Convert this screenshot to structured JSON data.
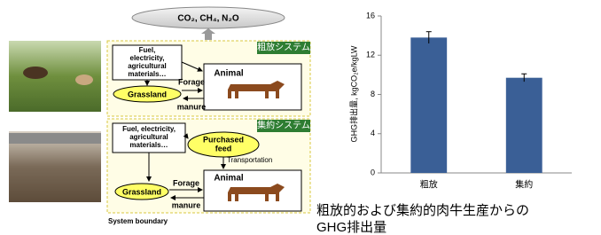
{
  "chart_data": {
    "type": "bar",
    "y_label": "GHG排出量, kgCO₂e/kgLW",
    "categories": [
      "粗放",
      "集約"
    ],
    "values": [
      13.8,
      9.7
    ],
    "errors": [
      0.6,
      0.4
    ],
    "color": "#3a5f96",
    "ylim": [
      0,
      16
    ],
    "yticks": [
      0,
      4,
      8,
      12,
      16
    ],
    "grid": false
  },
  "caption": [
    "粗放的および集約的肉牛生産からの",
    "GHG排出量"
  ],
  "diagram": {
    "emissions": "CO₂, CH₄, N₂O",
    "boundary": "System boundary",
    "extensive": {
      "title": "粗放システム",
      "inputs": [
        "Fuel,",
        "electricity,",
        "agricultural",
        "materials…"
      ],
      "grassland": "Grassland",
      "forage": "Forage",
      "manure": "manure",
      "animal": "Animal"
    },
    "intensive": {
      "title": "集約システム",
      "inputs": [
        "Fuel, electricity,",
        "agricultural",
        "materials…"
      ],
      "feed": [
        "Purchased",
        "feed"
      ],
      "transport": "Transportation",
      "grassland": "Grassland",
      "forage": "Forage",
      "manure": "manure",
      "animal": "Animal"
    }
  }
}
